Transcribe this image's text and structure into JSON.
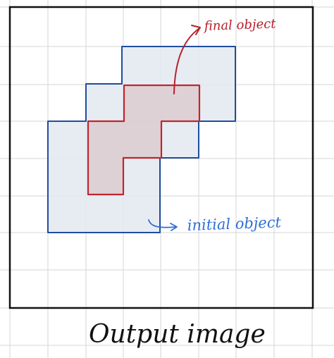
{
  "labels": {
    "final_object": "final object",
    "initial_object": "initial object",
    "caption": "Output image"
  },
  "colors": {
    "grid": "#d6d6d6",
    "frame": "#111111",
    "initial_stroke": "#1f4e9c",
    "initial_fill": "#e3e9f1",
    "final_stroke": "#c0262c",
    "final_fill": "#d9c8cc",
    "final_label": "#b8202a",
    "initial_label": "#2f6fd6",
    "caption": "#111111"
  }
}
